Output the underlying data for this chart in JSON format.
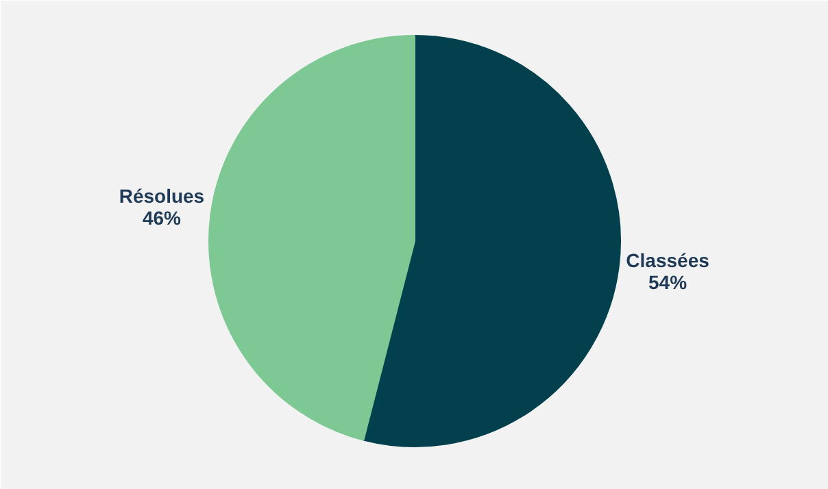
{
  "chart_data": {
    "type": "pie",
    "categories": [
      "Classées",
      "Résolues"
    ],
    "values": [
      54,
      46
    ],
    "colors": [
      "#01404c",
      "#7ec894"
    ],
    "value_labels": [
      "54%",
      "46%"
    ],
    "data_labels": true
  }
}
